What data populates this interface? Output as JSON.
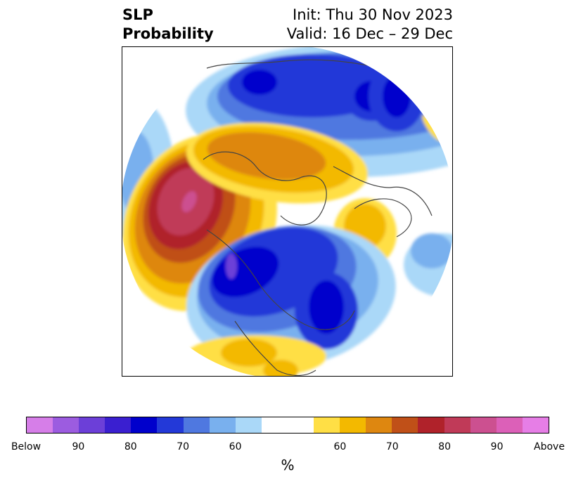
{
  "header": {
    "variable_line1": "SLP",
    "variable_line2": "Probability",
    "init": "Init: Thu 30 Nov 2023",
    "valid": "Valid: 16 Dec – 29 Dec"
  },
  "colorbar": {
    "colors": [
      "#d67ee8",
      "#9c5ce0",
      "#6c3fd8",
      "#3a1fd0",
      "#0000cc",
      "#2339d8",
      "#4f78e0",
      "#79b0ee",
      "#aad8f8",
      "#ffffff",
      "#ffffff",
      "#ffdf45",
      "#f3b900",
      "#de8710",
      "#c05018",
      "#b0222a",
      "#c03a58",
      "#cc5090",
      "#dc60b8",
      "#e67ee6"
    ],
    "tick_labels": [
      "Below",
      "90",
      "80",
      "70",
      "60",
      "60",
      "70",
      "80",
      "90",
      "Above"
    ],
    "unit_label": "%"
  },
  "map_colors": {
    "blue_60": "#aad8f8",
    "blue_65": "#79b0ee",
    "blue_70": "#4f78e0",
    "blue_75": "#2339d8",
    "blue_80": "#0000cc",
    "blue_85": "#3a1fd0",
    "blue_90": "#6c3fd8",
    "yel_60": "#ffdf45",
    "yel_65": "#f3b900",
    "yel_70": "#de8710",
    "red_75": "#c05018",
    "red_80": "#b0222a",
    "red_85": "#c03a58",
    "red_90": "#cc5090"
  }
}
